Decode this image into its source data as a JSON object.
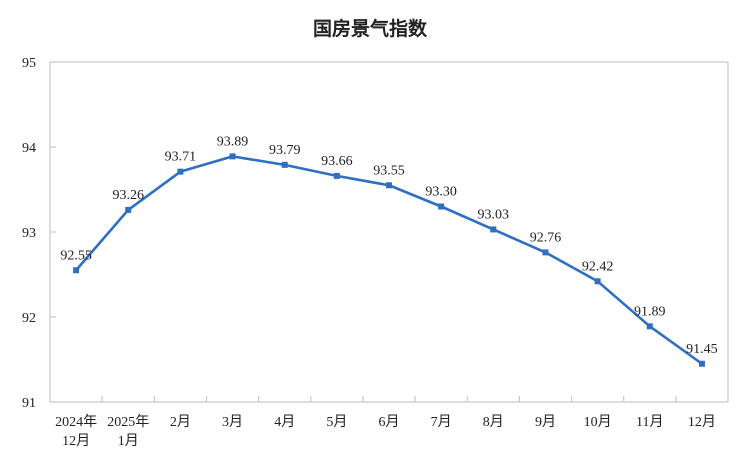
{
  "chart_data": {
    "type": "line",
    "title": "国房景气指数",
    "categories": [
      [
        "2024年",
        "12月"
      ],
      [
        "2025年",
        "1月"
      ],
      [
        "2月"
      ],
      [
        "3月"
      ],
      [
        "4月"
      ],
      [
        "5月"
      ],
      [
        "6月"
      ],
      [
        "7月"
      ],
      [
        "8月"
      ],
      [
        "9月"
      ],
      [
        "10月"
      ],
      [
        "11月"
      ],
      [
        "12月"
      ]
    ],
    "series": [
      {
        "values": [
          92.55,
          93.26,
          93.71,
          93.89,
          93.79,
          93.66,
          93.55,
          93.3,
          93.03,
          92.76,
          92.42,
          91.89,
          91.45
        ]
      }
    ],
    "data_labels": [
      "92.55",
      "93.26",
      "93.71",
      "93.89",
      "93.79",
      "93.66",
      "93.55",
      "93.30",
      "93.03",
      "92.76",
      "92.42",
      "91.89",
      "91.45"
    ],
    "yticks": [
      "91",
      "92",
      "93",
      "94",
      "95"
    ],
    "ylim": [
      91,
      95
    ],
    "grid": false,
    "xlabel": "",
    "ylabel": "",
    "colors": {
      "line": "#2f6fc2",
      "axis": "#c8c8c8"
    }
  }
}
